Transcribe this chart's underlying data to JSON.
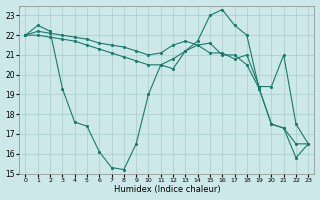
{
  "xlabel": "Humidex (Indice chaleur)",
  "background_color": "#cce8e8",
  "grid_color": "#aacccc",
  "line_color": "#1a7a6a",
  "xlim": [
    -0.5,
    23.5
  ],
  "ylim": [
    15,
    23.5
  ],
  "xticks": [
    0,
    1,
    2,
    3,
    4,
    5,
    6,
    7,
    8,
    9,
    10,
    11,
    12,
    13,
    14,
    15,
    16,
    17,
    18,
    19,
    20,
    21,
    22,
    23
  ],
  "yticks": [
    15,
    16,
    17,
    18,
    19,
    20,
    21,
    22,
    23
  ],
  "series": [
    {
      "x": [
        0,
        1,
        2,
        3,
        4,
        5,
        6,
        7,
        8,
        9,
        10,
        11,
        12,
        13,
        14,
        15,
        16,
        17,
        18,
        19,
        20,
        21,
        22,
        23
      ],
      "y": [
        22.0,
        22.2,
        22.1,
        22.0,
        21.9,
        21.8,
        21.6,
        21.5,
        21.4,
        21.2,
        21.0,
        21.1,
        21.5,
        21.7,
        21.5,
        21.1,
        21.1,
        20.8,
        21.0,
        19.4,
        19.4,
        21.0,
        17.5,
        16.5
      ]
    },
    {
      "x": [
        0,
        1,
        2,
        3,
        4,
        5,
        6,
        7,
        8,
        9,
        10,
        11,
        12,
        13,
        14,
        15,
        16,
        17,
        18,
        19,
        20,
        21,
        22,
        23
      ],
      "y": [
        22.0,
        22.0,
        21.9,
        21.8,
        21.7,
        21.5,
        21.3,
        21.1,
        20.9,
        20.7,
        20.5,
        20.5,
        20.8,
        21.2,
        21.5,
        21.6,
        21.0,
        21.0,
        20.5,
        19.3,
        17.5,
        17.3,
        16.5,
        16.5
      ]
    },
    {
      "x": [
        0,
        1,
        2,
        3,
        4,
        5,
        6,
        7,
        8,
        9,
        10,
        11,
        12,
        13,
        14,
        15,
        16,
        17,
        18,
        19,
        20,
        21,
        22,
        23
      ],
      "y": [
        22.0,
        22.5,
        22.2,
        19.3,
        17.6,
        17.4,
        16.1,
        15.3,
        15.2,
        16.5,
        19.0,
        20.5,
        20.3,
        21.2,
        21.7,
        23.0,
        23.3,
        22.5,
        22.0,
        19.3,
        17.5,
        17.3,
        15.8,
        16.5
      ]
    }
  ]
}
